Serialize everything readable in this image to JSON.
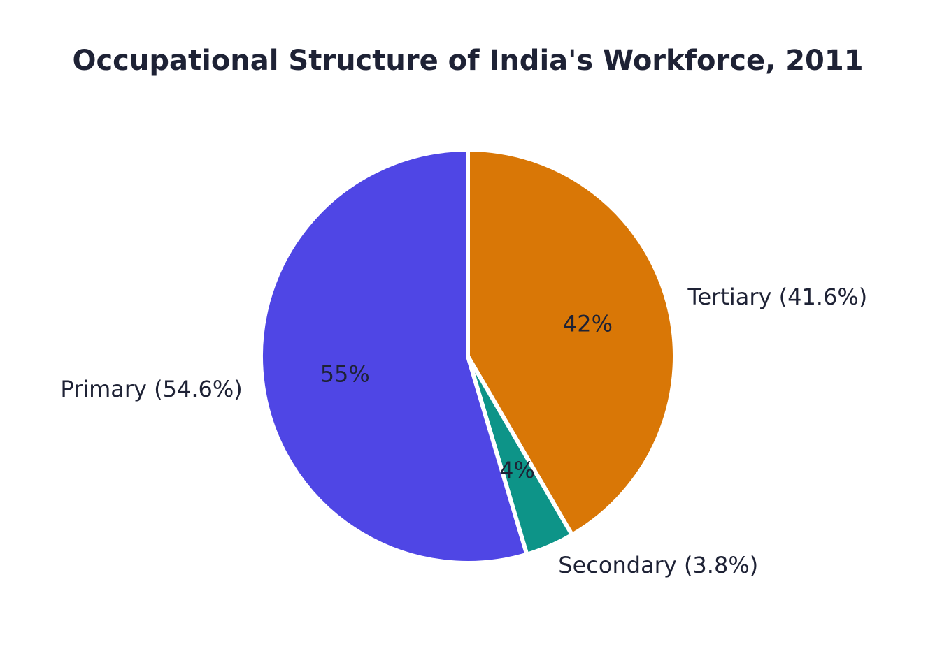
{
  "chart_data": {
    "type": "pie",
    "title": "Occupational Structure of India's Workforce, 2011",
    "start_angle_deg": 90,
    "direction": "clockwise",
    "slices": [
      {
        "name": "Tertiary",
        "value": 41.6,
        "label": "Tertiary (41.6%)",
        "pct_label": "42%",
        "color": "#d97706"
      },
      {
        "name": "Secondary",
        "value": 3.8,
        "label": "Secondary (3.8%)",
        "pct_label": "4%",
        "color": "#0d9488"
      },
      {
        "name": "Primary",
        "value": 54.6,
        "label": "Primary (54.6%)",
        "pct_label": "55%",
        "color": "#4f46e5"
      }
    ],
    "slice_edge_color": "#ffffff"
  }
}
